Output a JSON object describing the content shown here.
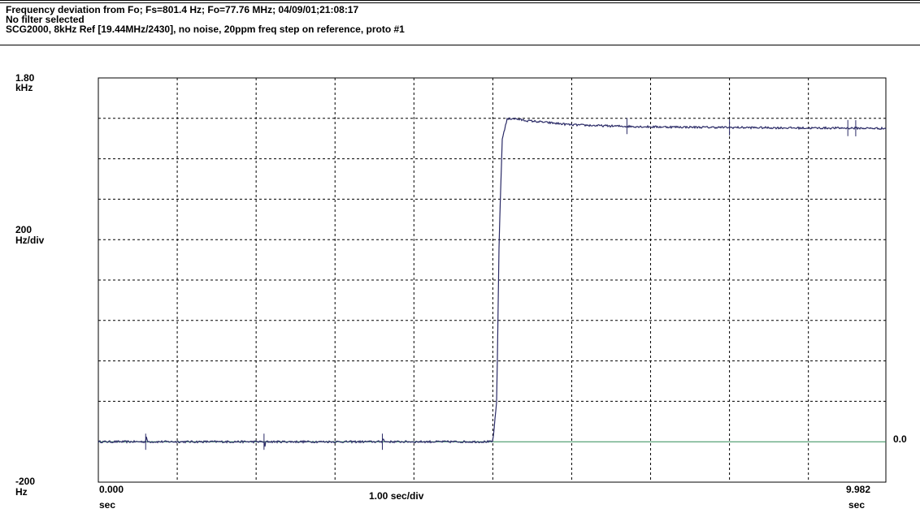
{
  "header": {
    "line1": "Frequency deviation from Fo;   Fs=801.4 Hz; Fo=77.76 MHz; 04/09/01;21:08:17",
    "line2": "No filter selected",
    "line3": "SCG2000, 8kHz Ref [19.44MHz/2430], no noise,  20ppm freq step on reference, proto #1"
  },
  "y_axis": {
    "top_value": "1.80",
    "top_unit": "kHz",
    "scale_value": "200",
    "scale_unit": "Hz/div",
    "bottom_value": "-200",
    "bottom_unit": "Hz",
    "ref_label": "0.0"
  },
  "x_axis": {
    "start_value": "0.000",
    "start_unit": "sec",
    "scale_label": "1.00 sec/div",
    "end_value": "9.982",
    "end_unit": "sec"
  },
  "chart_data": {
    "type": "line",
    "xlim": [
      0,
      9.982
    ],
    "ylim": [
      -200,
      1800
    ],
    "grid": true,
    "x_gridlines": [
      1,
      2,
      3,
      4,
      5,
      6,
      7,
      8,
      9
    ],
    "y_gridlines": [
      0,
      200,
      400,
      600,
      800,
      1000,
      1200,
      1400,
      1600
    ],
    "reference_line": {
      "y": 0,
      "color": "#2e8b57"
    },
    "series": [
      {
        "color": "#2a2a66",
        "x": [
          0,
          0.6,
          0.61,
          0.62,
          2.1,
          2.11,
          2.12,
          3.6,
          3.61,
          3.62,
          5.0,
          5.05,
          5.08,
          5.12,
          5.18,
          5.25,
          5.4,
          6.0,
          6.5,
          7.0,
          8.0,
          9.0,
          9.5,
          9.982
        ],
        "y": [
          0,
          0,
          30,
          0,
          0,
          -30,
          0,
          0,
          30,
          0,
          0,
          200,
          1000,
          1500,
          1595,
          1600,
          1590,
          1568,
          1562,
          1558,
          1555,
          1552,
          1552,
          1550
        ]
      }
    ]
  }
}
